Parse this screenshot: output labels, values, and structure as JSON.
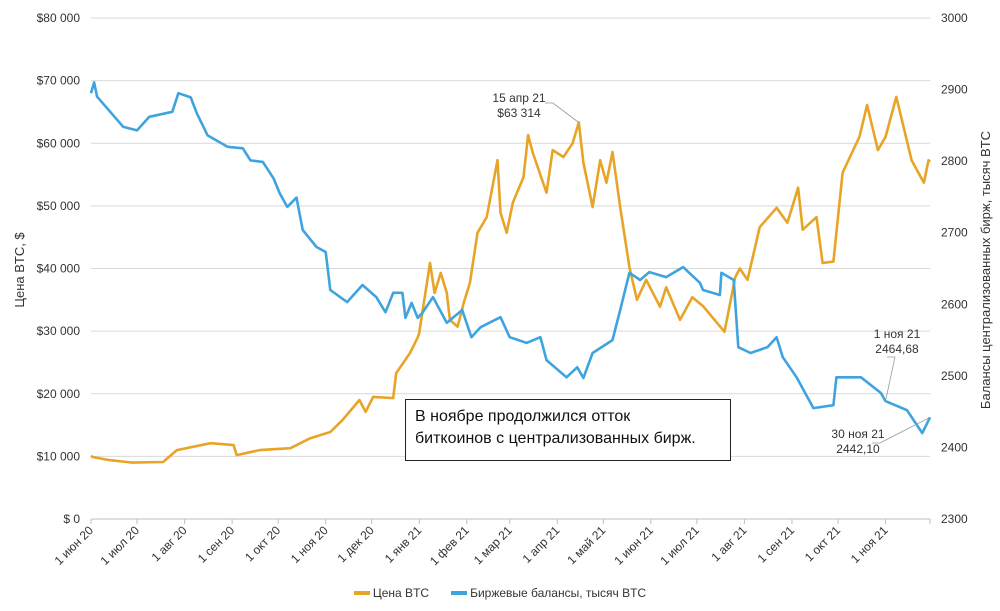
{
  "chart_data": {
    "type": "line",
    "left_axis": {
      "label": "Цена BTC, $",
      "ylim": [
        0,
        80000
      ],
      "ticks": [
        "$ 0",
        "$10 000",
        "$20 000",
        "$30 000",
        "$40 000",
        "$50 000",
        "$60 000",
        "$70 000",
        "$80 000"
      ]
    },
    "right_axis": {
      "label": "Балансы централизованных бирж, тысяч BTC",
      "ylim": [
        2300,
        3000
      ],
      "ticks": [
        "2300",
        "2400",
        "2500",
        "2600",
        "2700",
        "2800",
        "2900",
        "3000"
      ]
    },
    "x_range": [
      "2020-06-01",
      "2021-11-30"
    ],
    "x_ticks": [
      {
        "date": "2020-06-01",
        "label": "1 июн 20"
      },
      {
        "date": "2020-07-01",
        "label": "1 июл 20"
      },
      {
        "date": "2020-08-01",
        "label": "1 авг 20"
      },
      {
        "date": "2020-09-01",
        "label": "1 сен 20"
      },
      {
        "date": "2020-10-01",
        "label": "1 окт 20"
      },
      {
        "date": "2020-11-01",
        "label": "1 ноя 20"
      },
      {
        "date": "2020-12-01",
        "label": "1 дек 20"
      },
      {
        "date": "2021-01-01",
        "label": "1 янв 21"
      },
      {
        "date": "2021-02-01",
        "label": "1 фев 21"
      },
      {
        "date": "2021-03-01",
        "label": "1 мар 21"
      },
      {
        "date": "2021-04-01",
        "label": "1 апр 21"
      },
      {
        "date": "2021-05-01",
        "label": "1 май 21"
      },
      {
        "date": "2021-06-01",
        "label": "1 июн 21"
      },
      {
        "date": "2021-07-01",
        "label": "1 июл 21"
      },
      {
        "date": "2021-08-01",
        "label": "1 авг 21"
      },
      {
        "date": "2021-09-01",
        "label": "1 сен 21"
      },
      {
        "date": "2021-10-01",
        "label": "1 окт 21"
      },
      {
        "date": "2021-11-01",
        "label": "1 ноя 21"
      }
    ],
    "grid": "horizontal",
    "legend_position": "bottom",
    "series": [
      {
        "name": "Цена BTC",
        "axis": "left",
        "color": "#E8A427",
        "points": [
          [
            "2020-06-01",
            10100
          ],
          [
            "2020-06-02",
            9900
          ],
          [
            "2020-06-13",
            9400
          ],
          [
            "2020-06-28",
            9000
          ],
          [
            "2020-07-18",
            9100
          ],
          [
            "2020-07-27",
            11000
          ],
          [
            "2020-08-18",
            12100
          ],
          [
            "2020-09-02",
            11800
          ],
          [
            "2020-09-04",
            10200
          ],
          [
            "2020-09-19",
            11000
          ],
          [
            "2020-10-09",
            11300
          ],
          [
            "2020-10-22",
            12900
          ],
          [
            "2020-11-04",
            13900
          ],
          [
            "2020-11-12",
            15800
          ],
          [
            "2020-11-23",
            19000
          ],
          [
            "2020-11-27",
            17100
          ],
          [
            "2020-12-02",
            19500
          ],
          [
            "2020-12-15",
            19300
          ],
          [
            "2020-12-17",
            23300
          ],
          [
            "2020-12-26",
            26500
          ],
          [
            "2020-12-31",
            29000
          ],
          [
            "2021-01-01",
            29700
          ],
          [
            "2021-01-08",
            40900
          ],
          [
            "2021-01-11",
            36100
          ],
          [
            "2021-01-15",
            39300
          ],
          [
            "2021-01-19",
            36100
          ],
          [
            "2021-01-21",
            31800
          ],
          [
            "2021-01-26",
            30700
          ],
          [
            "2021-01-30",
            34500
          ],
          [
            "2021-02-03",
            37700
          ],
          [
            "2021-02-08",
            45700
          ],
          [
            "2021-02-14",
            48200
          ],
          [
            "2021-02-21",
            57300
          ],
          [
            "2021-02-23",
            48900
          ],
          [
            "2021-02-27",
            45700
          ],
          [
            "2021-03-03",
            50500
          ],
          [
            "2021-03-10",
            54600
          ],
          [
            "2021-03-13",
            61300
          ],
          [
            "2021-03-16",
            58500
          ],
          [
            "2021-03-25",
            52100
          ],
          [
            "2021-03-29",
            58900
          ],
          [
            "2021-04-05",
            57800
          ],
          [
            "2021-04-11",
            60000
          ],
          [
            "2021-04-15",
            63314
          ],
          [
            "2021-04-18",
            56900
          ],
          [
            "2021-04-24",
            49800
          ],
          [
            "2021-04-29",
            57300
          ],
          [
            "2021-05-03",
            53700
          ],
          [
            "2021-05-07",
            58600
          ],
          [
            "2021-05-12",
            49800
          ],
          [
            "2021-05-18",
            40200
          ],
          [
            "2021-05-23",
            35000
          ],
          [
            "2021-05-29",
            38200
          ],
          [
            "2021-06-07",
            33900
          ],
          [
            "2021-06-11",
            37000
          ],
          [
            "2021-06-20",
            31800
          ],
          [
            "2021-06-28",
            35400
          ],
          [
            "2021-07-05",
            34000
          ],
          [
            "2021-07-19",
            29900
          ],
          [
            "2021-07-26",
            38600
          ],
          [
            "2021-07-29",
            40000
          ],
          [
            "2021-08-03",
            38200
          ],
          [
            "2021-08-11",
            46600
          ],
          [
            "2021-08-22",
            49700
          ],
          [
            "2021-08-29",
            47300
          ],
          [
            "2021-09-05",
            52900
          ],
          [
            "2021-09-08",
            46200
          ],
          [
            "2021-09-17",
            48200
          ],
          [
            "2021-09-21",
            40900
          ],
          [
            "2021-09-28",
            41100
          ],
          [
            "2021-10-04",
            55300
          ],
          [
            "2021-10-15",
            61000
          ],
          [
            "2021-10-20",
            66100
          ],
          [
            "2021-10-27",
            58900
          ],
          [
            "2021-11-01",
            61000
          ],
          [
            "2021-11-08",
            67400
          ],
          [
            "2021-11-18",
            57300
          ],
          [
            "2021-11-26",
            53700
          ],
          [
            "2021-11-29",
            57300
          ],
          [
            "2021-11-30",
            57000
          ]
        ]
      },
      {
        "name": "Биржевые балансы, тысяч BTC",
        "axis": "right",
        "color": "#3FA4DE",
        "points": [
          [
            "2020-06-01",
            2895
          ],
          [
            "2020-06-03",
            2910
          ],
          [
            "2020-06-05",
            2890
          ],
          [
            "2020-06-22",
            2848
          ],
          [
            "2020-07-01",
            2843
          ],
          [
            "2020-07-09",
            2862
          ],
          [
            "2020-07-24",
            2869
          ],
          [
            "2020-07-28",
            2895
          ],
          [
            "2020-08-05",
            2889
          ],
          [
            "2020-08-09",
            2867
          ],
          [
            "2020-08-16",
            2836
          ],
          [
            "2020-08-29",
            2820
          ],
          [
            "2020-09-08",
            2818
          ],
          [
            "2020-09-13",
            2801
          ],
          [
            "2020-09-21",
            2799
          ],
          [
            "2020-09-28",
            2776
          ],
          [
            "2020-10-02",
            2755
          ],
          [
            "2020-10-07",
            2736
          ],
          [
            "2020-10-13",
            2749
          ],
          [
            "2020-10-17",
            2704
          ],
          [
            "2020-10-26",
            2680
          ],
          [
            "2020-11-01",
            2673
          ],
          [
            "2020-11-04",
            2620
          ],
          [
            "2020-11-15",
            2603
          ],
          [
            "2020-11-25",
            2627
          ],
          [
            "2020-12-04",
            2610
          ],
          [
            "2020-12-10",
            2589
          ],
          [
            "2020-12-15",
            2616
          ],
          [
            "2020-12-21",
            2616
          ],
          [
            "2020-12-23",
            2581
          ],
          [
            "2020-12-27",
            2602
          ],
          [
            "2020-12-31",
            2581
          ],
          [
            "2021-01-03",
            2588
          ],
          [
            "2021-01-10",
            2610
          ],
          [
            "2021-01-19",
            2574
          ],
          [
            "2021-01-29",
            2592
          ],
          [
            "2021-02-04",
            2554
          ],
          [
            "2021-02-10",
            2568
          ],
          [
            "2021-02-23",
            2582
          ],
          [
            "2021-03-01",
            2554
          ],
          [
            "2021-03-12",
            2546
          ],
          [
            "2021-03-21",
            2554
          ],
          [
            "2021-03-25",
            2522
          ],
          [
            "2021-04-07",
            2498
          ],
          [
            "2021-04-14",
            2512
          ],
          [
            "2021-04-18",
            2497
          ],
          [
            "2021-04-24",
            2532
          ],
          [
            "2021-05-07",
            2550
          ],
          [
            "2021-05-12",
            2592
          ],
          [
            "2021-05-18",
            2644
          ],
          [
            "2021-05-25",
            2634
          ],
          [
            "2021-05-31",
            2645
          ],
          [
            "2021-06-11",
            2638
          ],
          [
            "2021-06-22",
            2652
          ],
          [
            "2021-07-03",
            2630
          ],
          [
            "2021-07-05",
            2620
          ],
          [
            "2021-07-16",
            2613
          ],
          [
            "2021-07-17",
            2644
          ],
          [
            "2021-07-25",
            2634
          ],
          [
            "2021-07-28",
            2540
          ],
          [
            "2021-08-05",
            2532
          ],
          [
            "2021-08-16",
            2540
          ],
          [
            "2021-08-22",
            2554
          ],
          [
            "2021-08-26",
            2526
          ],
          [
            "2021-09-04",
            2498
          ],
          [
            "2021-09-15",
            2455
          ],
          [
            "2021-09-28",
            2459
          ],
          [
            "2021-09-30",
            2498
          ],
          [
            "2021-10-16",
            2498
          ],
          [
            "2021-10-29",
            2476
          ],
          [
            "2021-11-01",
            2464.68
          ],
          [
            "2021-11-15",
            2452
          ],
          [
            "2021-11-25",
            2420
          ],
          [
            "2021-11-30",
            2442.1
          ]
        ]
      }
    ],
    "annotations": [
      {
        "date": "2021-04-15",
        "series": 0,
        "value": 63314,
        "lines": [
          "15 апр 21",
          "$63 314"
        ]
      },
      {
        "date": "2021-11-01",
        "series": 1,
        "value": 2464.68,
        "lines": [
          "1 ноя 21",
          "2464,68"
        ]
      },
      {
        "date": "2021-11-30",
        "series": 1,
        "value": 2442.1,
        "lines": [
          "30 ноя 21",
          "2442,10"
        ]
      }
    ]
  },
  "callout": {
    "line1": "В ноябре продолжился отток",
    "line2": "биткоинов с централизованных бирж."
  },
  "legend": [
    {
      "label": "Цена BTC",
      "color": "#E8A427"
    },
    {
      "label": "Биржевые балансы, тысяч BTC",
      "color": "#3FA4DE"
    }
  ]
}
